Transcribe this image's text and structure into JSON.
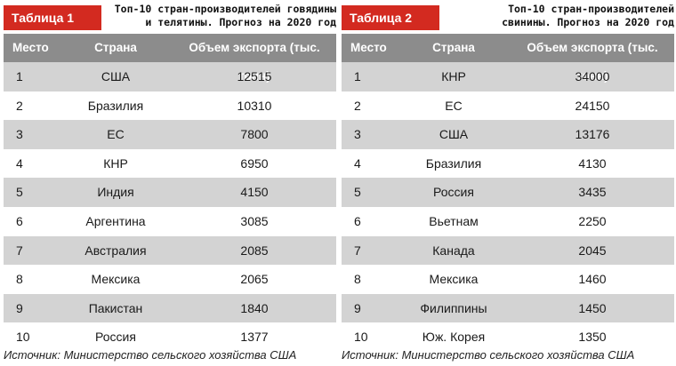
{
  "tables": [
    {
      "badge": "Таблица 1",
      "caption_line1": "Топ-10 стран-производителей говядины",
      "caption_line2": "и телятины. Прогноз на 2020 год",
      "columns": [
        "Место",
        "Страна",
        "Объем экспорта (тыс. тонн)"
      ],
      "rows": [
        {
          "rank": "1",
          "country": "США",
          "value": "12515"
        },
        {
          "rank": "2",
          "country": "Бразилия",
          "value": "10310"
        },
        {
          "rank": "3",
          "country": "ЕС",
          "value": "7800"
        },
        {
          "rank": "4",
          "country": "КНР",
          "value": "6950"
        },
        {
          "rank": "5",
          "country": "Индия",
          "value": "4150"
        },
        {
          "rank": "6",
          "country": "Аргентина",
          "value": "3085"
        },
        {
          "rank": "7",
          "country": "Австралия",
          "value": "2085"
        },
        {
          "rank": "8",
          "country": "Мексика",
          "value": "2065"
        },
        {
          "rank": "9",
          "country": "Пакистан",
          "value": "1840"
        },
        {
          "rank": "10",
          "country": "Россия",
          "value": "1377"
        }
      ],
      "source": "Источник: Министерство сельского хозяйства США"
    },
    {
      "badge": "Таблица 2",
      "caption_line1": "Топ-10 стран-производителей",
      "caption_line2": "свинины. Прогноз на 2020 год",
      "columns": [
        "Место",
        "Страна",
        "Объем экспорта (тыс. тонн)"
      ],
      "rows": [
        {
          "rank": "1",
          "country": "КНР",
          "value": "34000"
        },
        {
          "rank": "2",
          "country": "ЕС",
          "value": "24150"
        },
        {
          "rank": "3",
          "country": "США",
          "value": "13176"
        },
        {
          "rank": "4",
          "country": "Бразилия",
          "value": "4130"
        },
        {
          "rank": "5",
          "country": "Россия",
          "value": "3435"
        },
        {
          "rank": "6",
          "country": "Вьетнам",
          "value": "2250"
        },
        {
          "rank": "7",
          "country": "Канада",
          "value": "2045"
        },
        {
          "rank": "8",
          "country": "Мексика",
          "value": "1460"
        },
        {
          "rank": "9",
          "country": "Филиппины",
          "value": "1450"
        },
        {
          "rank": "10",
          "country": "Юж. Корея",
          "value": "1350"
        }
      ],
      "source": "Источник: Министерство сельского хозяйства США"
    }
  ],
  "colors": {
    "badge": "#d32a20",
    "header": "#8c8c8c",
    "row_alt": "#d3d3d3"
  }
}
